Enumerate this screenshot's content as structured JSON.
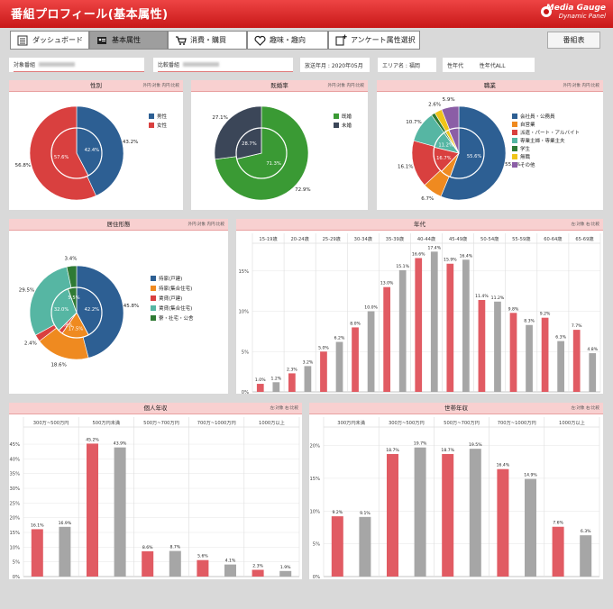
{
  "header": {
    "title": "番組プロフィール(基本属性)",
    "logo_line1": "Media Gauge",
    "logo_line2": "Dynamic Panel"
  },
  "tabs": [
    {
      "label": "ダッシュボード",
      "icon": "dashboard-icon"
    },
    {
      "label": "基本属性",
      "icon": "id-card-icon"
    },
    {
      "label": "消費・購買",
      "icon": "cart-icon"
    },
    {
      "label": "趣味・趣向",
      "icon": "heart-icon"
    },
    {
      "label": "アンケート属性選択",
      "icon": "add-document-icon"
    }
  ],
  "bangumi_button": "番組表",
  "filters": {
    "target_label": "対象番組",
    "compare_label": "比較番組",
    "period": "放送年月 : 2020年05月",
    "area": "エリア名 : 福岡",
    "gender_age_label": "性年代",
    "gender_age_value": "性年代ALL"
  },
  "unit_label": "外円:対象 内円:比較",
  "unit_label_bar": "左:対象 右:比較",
  "colors": {
    "target": "#e15b63",
    "compare": "#a6a6a6",
    "blue": "#2d5f93",
    "red": "#d9403f",
    "green": "#3a9a34",
    "navy": "#3b4658",
    "orange": "#ef8a20",
    "teal": "#56b6a3",
    "darkgreen": "#2f7a34",
    "yellow": "#f0c419",
    "purple": "#8b5ea6"
  },
  "pie_gender": {
    "title": "性別",
    "legend": [
      "男性",
      "女性"
    ],
    "outer": [
      43.2,
      56.8
    ],
    "inner": [
      42.4,
      57.6
    ],
    "outer_labels": [
      "43.2%",
      "56.8%"
    ],
    "inner_labels": [
      "42.4%",
      "57.6%"
    ]
  },
  "pie_married": {
    "title": "既婚率",
    "legend": [
      "既婚",
      "未婚"
    ],
    "outer": [
      72.9,
      27.1
    ],
    "inner": [
      71.3,
      28.7
    ],
    "outer_labels": [
      "72.9%",
      "27.1%"
    ],
    "inner_labels": [
      "71.3%",
      "28.7%"
    ]
  },
  "pie_job": {
    "title": "職業",
    "legend": [
      "会社員・公務員",
      "自営業",
      "派遣・パート・アルバイト",
      "専業主婦・専業主夫",
      "学生",
      "無職",
      "その他"
    ],
    "outer": [
      55.7,
      6.7,
      16.1,
      10.7,
      1.3,
      2.6,
      5.9
    ],
    "inner": [
      55.6,
      6.5,
      16.7,
      11.2,
      1.1,
      2.4,
      6.5
    ],
    "outer_labels": [
      "55.7%",
      "6.7%",
      "16.1%",
      "10.7%",
      "",
      "2.6%",
      "5.9%"
    ],
    "inner_labels": [
      "55.6%",
      "",
      "16.7%",
      "11.2%",
      "",
      "",
      ""
    ]
  },
  "pie_housing": {
    "title": "居住形態",
    "legend": [
      "持家(戸建)",
      "持家(集合住宅)",
      "賃貸(戸建)",
      "賃貸(集合住宅)",
      "寮・社宅・公舎"
    ],
    "outer": [
      45.8,
      18.6,
      2.4,
      29.5,
      3.4
    ],
    "inner": [
      42.2,
      17.5,
      2.8,
      32.0,
      5.5
    ],
    "outer_labels": [
      "45.8%",
      "18.6%",
      "2.4%",
      "29.5%",
      "3.4%"
    ],
    "inner_labels": [
      "42.2%",
      "17.5%",
      "2.8%",
      "32.0%",
      "5.5%"
    ]
  },
  "chart_data": [
    {
      "type": "bar",
      "title": "年代",
      "categories": [
        "15-19歳",
        "20-24歳",
        "25-29歳",
        "30-34歳",
        "35-39歳",
        "40-44歳",
        "45-49歳",
        "50-54歳",
        "55-59歳",
        "60-64歳",
        "65-69歳"
      ],
      "series": [
        {
          "values": [
            1.0,
            2.3,
            5.0,
            8.0,
            13.0,
            16.6,
            15.9,
            11.4,
            9.8,
            9.2,
            7.7
          ]
        },
        {
          "values": [
            1.2,
            3.2,
            6.2,
            10.0,
            15.1,
            17.4,
            16.4,
            11.2,
            8.3,
            6.3,
            4.8
          ]
        }
      ],
      "labels": [
        [
          "1.0%",
          "2.3%",
          "5.0%",
          "8.0%",
          "13.0%",
          "16.6%",
          "15.9%",
          "11.4%",
          "9.8%",
          "9.2%",
          "7.7%"
        ],
        [
          "1.2%",
          "3.2%",
          "6.2%",
          "10.0%",
          "15.1%",
          "17.4%",
          "16.4%",
          "11.2%",
          "8.3%",
          "6.3%",
          "4.8%"
        ]
      ],
      "yticks": [
        "0%",
        "5%",
        "10%",
        "15%"
      ],
      "ylim": [
        0,
        19
      ]
    },
    {
      "type": "bar",
      "title": "個人年収",
      "categories": [
        "300万~500万円",
        "500万円未満",
        "500万~700万円",
        "700万~1000万円",
        "1000万以上"
      ],
      "series": [
        {
          "values": [
            16.1,
            45.2,
            8.6,
            5.6,
            2.3
          ]
        },
        {
          "values": [
            16.9,
            43.9,
            8.7,
            4.1,
            1.9
          ]
        }
      ],
      "labels": [
        [
          "16.1%",
          "45.2%",
          "8.6%",
          "5.6%",
          "2.3%"
        ],
        [
          "16.9%",
          "43.9%",
          "8.7%",
          "4.1%",
          "1.9%"
        ]
      ],
      "yticks": [
        "0%",
        "5%",
        "10%",
        "15%",
        "20%",
        "25%",
        "30%",
        "35%",
        "40%",
        "45%"
      ],
      "ylim": [
        0,
        49
      ]
    },
    {
      "type": "bar",
      "title": "世帯年収",
      "categories": [
        "300万円未満",
        "300万~500万円",
        "500万~700万円",
        "700万~1000万円",
        "1000万以上"
      ],
      "series": [
        {
          "values": [
            9.2,
            18.7,
            18.7,
            16.4,
            7.6
          ]
        },
        {
          "values": [
            9.1,
            19.7,
            19.5,
            14.9,
            6.3
          ]
        }
      ],
      "labels": [
        [
          "9.2%",
          "18.7%",
          "18.7%",
          "16.4%",
          "7.6%"
        ],
        [
          "9.1%",
          "19.7%",
          "19.5%",
          "14.9%",
          "6.3%"
        ]
      ],
      "yticks": [
        "0%",
        "5%",
        "10%",
        "15%",
        "20%"
      ],
      "ylim": [
        0,
        22
      ]
    }
  ]
}
